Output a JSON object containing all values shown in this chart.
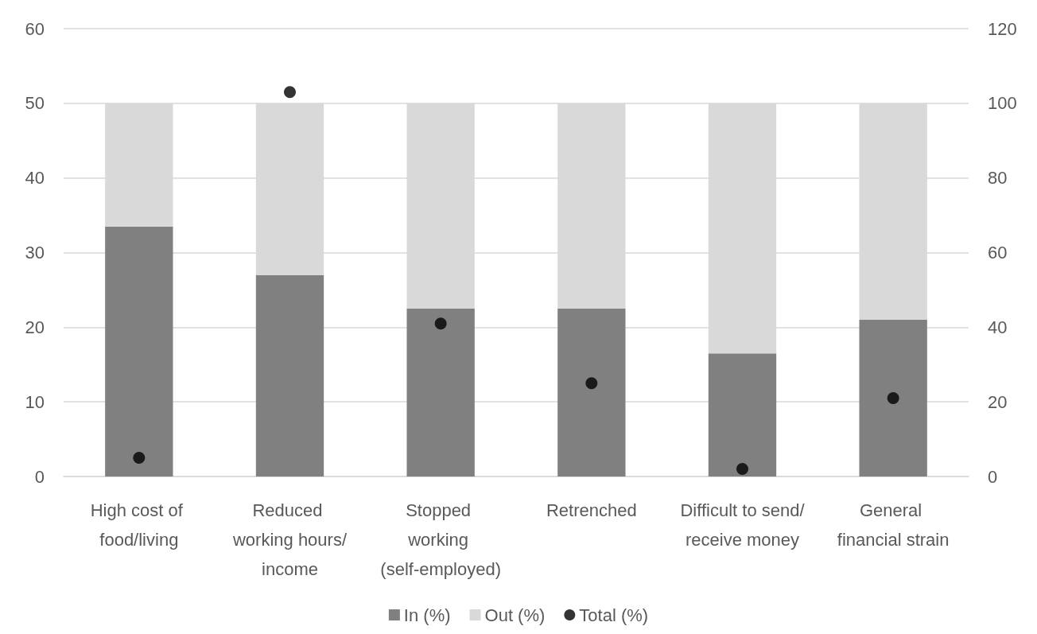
{
  "chart_data": {
    "type": "bar",
    "stacked": true,
    "categories": [
      "High cost of food/living",
      "Reduced working hours/income",
      "Stopped working (self-employed)",
      "Retrenched",
      "Difficult to send/receive money",
      "General financial strain"
    ],
    "series": [
      {
        "name": "In (%)",
        "color": "#808080",
        "values": [
          33.5,
          27,
          22.5,
          22.5,
          16.5,
          21
        ]
      },
      {
        "name": "Out (%)",
        "color": "#d9d9d9",
        "values": [
          16.5,
          23,
          27.5,
          27.5,
          33.5,
          29
        ]
      },
      {
        "name": "Total (%)",
        "type": "scatter",
        "axis": "y2",
        "color": "#000000",
        "x": [
          "High cost of food/living",
          "Reduced working hours/income",
          "Stopped working (self-employed)",
          "Retrenched",
          "Difficult to send/receive money",
          "General financial strain"
        ],
        "values": [
          5,
          103,
          41,
          25,
          2,
          21
        ]
      }
    ],
    "ylim": [
      0,
      60
    ],
    "yticks": [
      0,
      10,
      20,
      30,
      40,
      50,
      60
    ],
    "y2lim": [
      0,
      120
    ],
    "y2ticks": [
      0,
      20,
      40,
      60,
      80,
      100,
      120
    ],
    "grid": "y",
    "legend": "bottom",
    "marker": "circle"
  }
}
